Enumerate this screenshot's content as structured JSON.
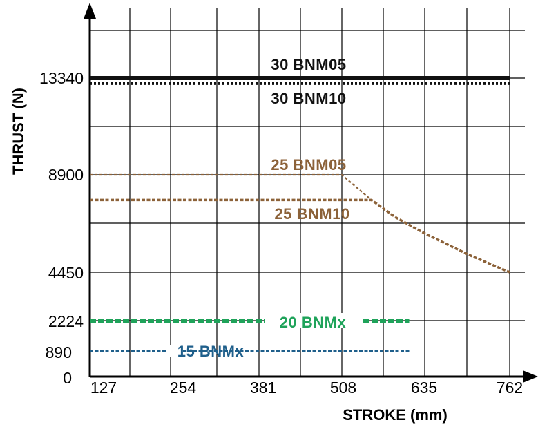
{
  "chart_data": {
    "type": "line",
    "xlabel": "STROKE (mm)",
    "ylabel": "THRUST (N)",
    "x_ticks": [
      "127",
      "254",
      "381",
      "508",
      "635",
      "762"
    ],
    "y_ticks": [
      "0",
      "890",
      "2224",
      "4450",
      "8900",
      "13340"
    ],
    "x_range": [
      127,
      762
    ],
    "grid": true,
    "series": [
      {
        "name": "30 BNM05",
        "color": "#111111",
        "style": "solid-thick",
        "points": [
          [
            127,
            13340
          ],
          [
            762,
            13340
          ]
        ]
      },
      {
        "name": "30 BNM10",
        "color": "#111111",
        "style": "dotted",
        "points": [
          [
            127,
            13100
          ],
          [
            762,
            13100
          ]
        ]
      },
      {
        "name": "25 BNM05",
        "color": "#8c6239",
        "style": "dashed-thin",
        "points": [
          [
            127,
            8900
          ],
          [
            508,
            8900
          ],
          [
            553,
            7750
          ]
        ]
      },
      {
        "name": "25 BNM10",
        "color": "#8c6239",
        "style": "dashed",
        "points": [
          [
            127,
            7750
          ],
          [
            553,
            7750
          ],
          [
            590,
            6950
          ],
          [
            635,
            6200
          ],
          [
            700,
            5250
          ],
          [
            762,
            4450
          ]
        ]
      },
      {
        "name": "20 BNMx",
        "color": "#1fa35a",
        "style": "dashed-thick",
        "points": [
          [
            127,
            2224
          ],
          [
            610,
            2224
          ]
        ]
      },
      {
        "name": "15 BNMx",
        "color": "#1f5f8b",
        "style": "dashed",
        "points": [
          [
            127,
            890
          ],
          [
            610,
            890
          ]
        ]
      }
    ]
  }
}
